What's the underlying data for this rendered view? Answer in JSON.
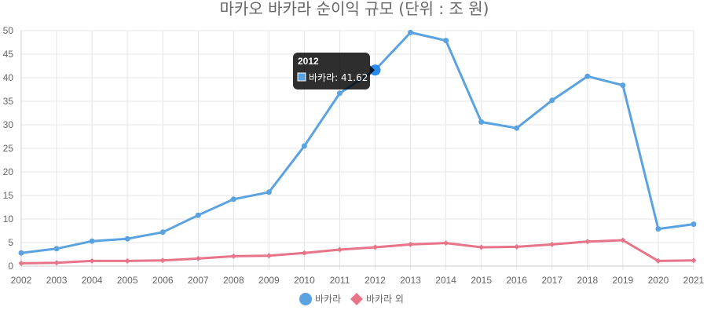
{
  "chart_data": {
    "type": "line",
    "title": "마카오 바카라 순이익 규모 (단위 : 조 원)",
    "categories": [
      "2002",
      "2003",
      "2004",
      "2005",
      "2006",
      "2007",
      "2008",
      "2009",
      "2010",
      "2011",
      "2012",
      "2013",
      "2014",
      "2015",
      "2016",
      "2017",
      "2018",
      "2019",
      "2020",
      "2021"
    ],
    "series": [
      {
        "name": "바카라",
        "color": "#5ba3e0",
        "marker": "circle",
        "values": [
          2.8,
          3.7,
          5.3,
          5.8,
          7.2,
          10.8,
          14.2,
          15.7,
          25.5,
          36.7,
          41.62,
          49.6,
          47.9,
          30.6,
          29.3,
          35.2,
          40.3,
          38.4,
          7.9,
          8.9
        ]
      },
      {
        "name": "바카라 외",
        "color": "#e8748a",
        "marker": "diamond",
        "values": [
          0.6,
          0.7,
          1.1,
          1.1,
          1.2,
          1.6,
          2.1,
          2.2,
          2.8,
          3.5,
          4.0,
          4.6,
          4.9,
          4.0,
          4.1,
          4.6,
          5.2,
          5.5,
          1.1,
          1.2
        ]
      }
    ],
    "ylim": [
      0,
      50
    ],
    "yticks": [
      "0",
      "5",
      "10",
      "15",
      "20",
      "25",
      "30",
      "35",
      "40",
      "45",
      "50"
    ],
    "grid": true,
    "legend_position": "bottom",
    "tooltip": {
      "title": "2012",
      "series_label": "바카라",
      "value_text": "41.62",
      "category_index": 10,
      "series_index": 0
    }
  }
}
